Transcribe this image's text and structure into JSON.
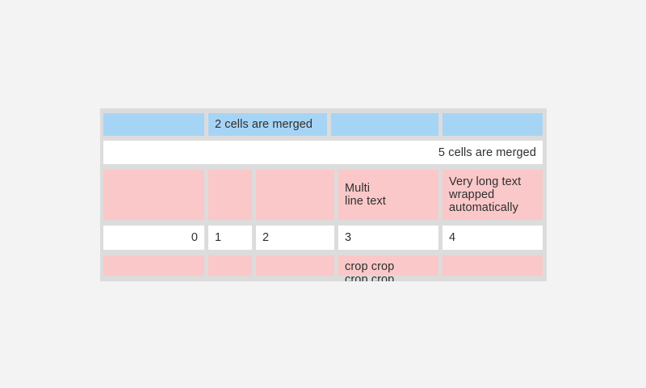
{
  "colors": {
    "page_bg": "#f3f3f3",
    "table_bg": "#dcdcdc",
    "cell_blue": "#a6d4f5",
    "cell_pink": "#fac8c8",
    "cell_white": "#ffffff",
    "text": "#2f2f2f"
  },
  "table": {
    "row1": {
      "c1": "",
      "c2_merged": "2 cells are merged",
      "c3": "",
      "c4": ""
    },
    "row2": {
      "c1_merged": "5 cells are merged"
    },
    "row3": {
      "c1": "",
      "c2": "",
      "c3": "",
      "c4": "Multi\nline text",
      "c5": "Very long text wrapped automatically"
    },
    "row4": {
      "c1": "0",
      "c2": "1",
      "c3": "2",
      "c4": "3",
      "c5": "4"
    },
    "row5": {
      "c1": "",
      "c2": "",
      "c3": "",
      "c4": "crop crop\ncrop crop",
      "c5": ""
    }
  }
}
